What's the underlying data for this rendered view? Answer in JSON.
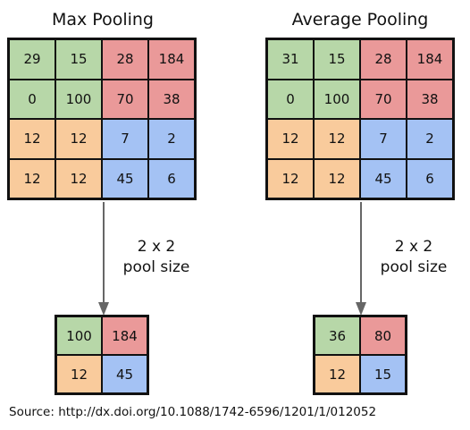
{
  "colors": {
    "green": "#b7d7a8",
    "red": "#ea9999",
    "orange": "#f9cb9c",
    "blue": "#a4c2f4",
    "arrow": "#666666"
  },
  "max_pooling": {
    "title": "Max Pooling",
    "input": [
      [
        "29",
        "15",
        "28",
        "184"
      ],
      [
        "0",
        "100",
        "70",
        "38"
      ],
      [
        "12",
        "12",
        "7",
        "2"
      ],
      [
        "12",
        "12",
        "45",
        "6"
      ]
    ],
    "pool_label": [
      "2 x 2",
      "pool size"
    ],
    "output": [
      [
        "100",
        "184"
      ],
      [
        "12",
        "45"
      ]
    ]
  },
  "average_pooling": {
    "title": "Average Pooling",
    "input": [
      [
        "31",
        "15",
        "28",
        "184"
      ],
      [
        "0",
        "100",
        "70",
        "38"
      ],
      [
        "12",
        "12",
        "7",
        "2"
      ],
      [
        "12",
        "12",
        "45",
        "6"
      ]
    ],
    "pool_label": [
      "2 x 2",
      "pool size"
    ],
    "output": [
      [
        "36",
        "80"
      ],
      [
        "12",
        "15"
      ]
    ]
  },
  "source": "Source: http://dx.doi.org/10.1088/1742-6596/1201/1/012052"
}
